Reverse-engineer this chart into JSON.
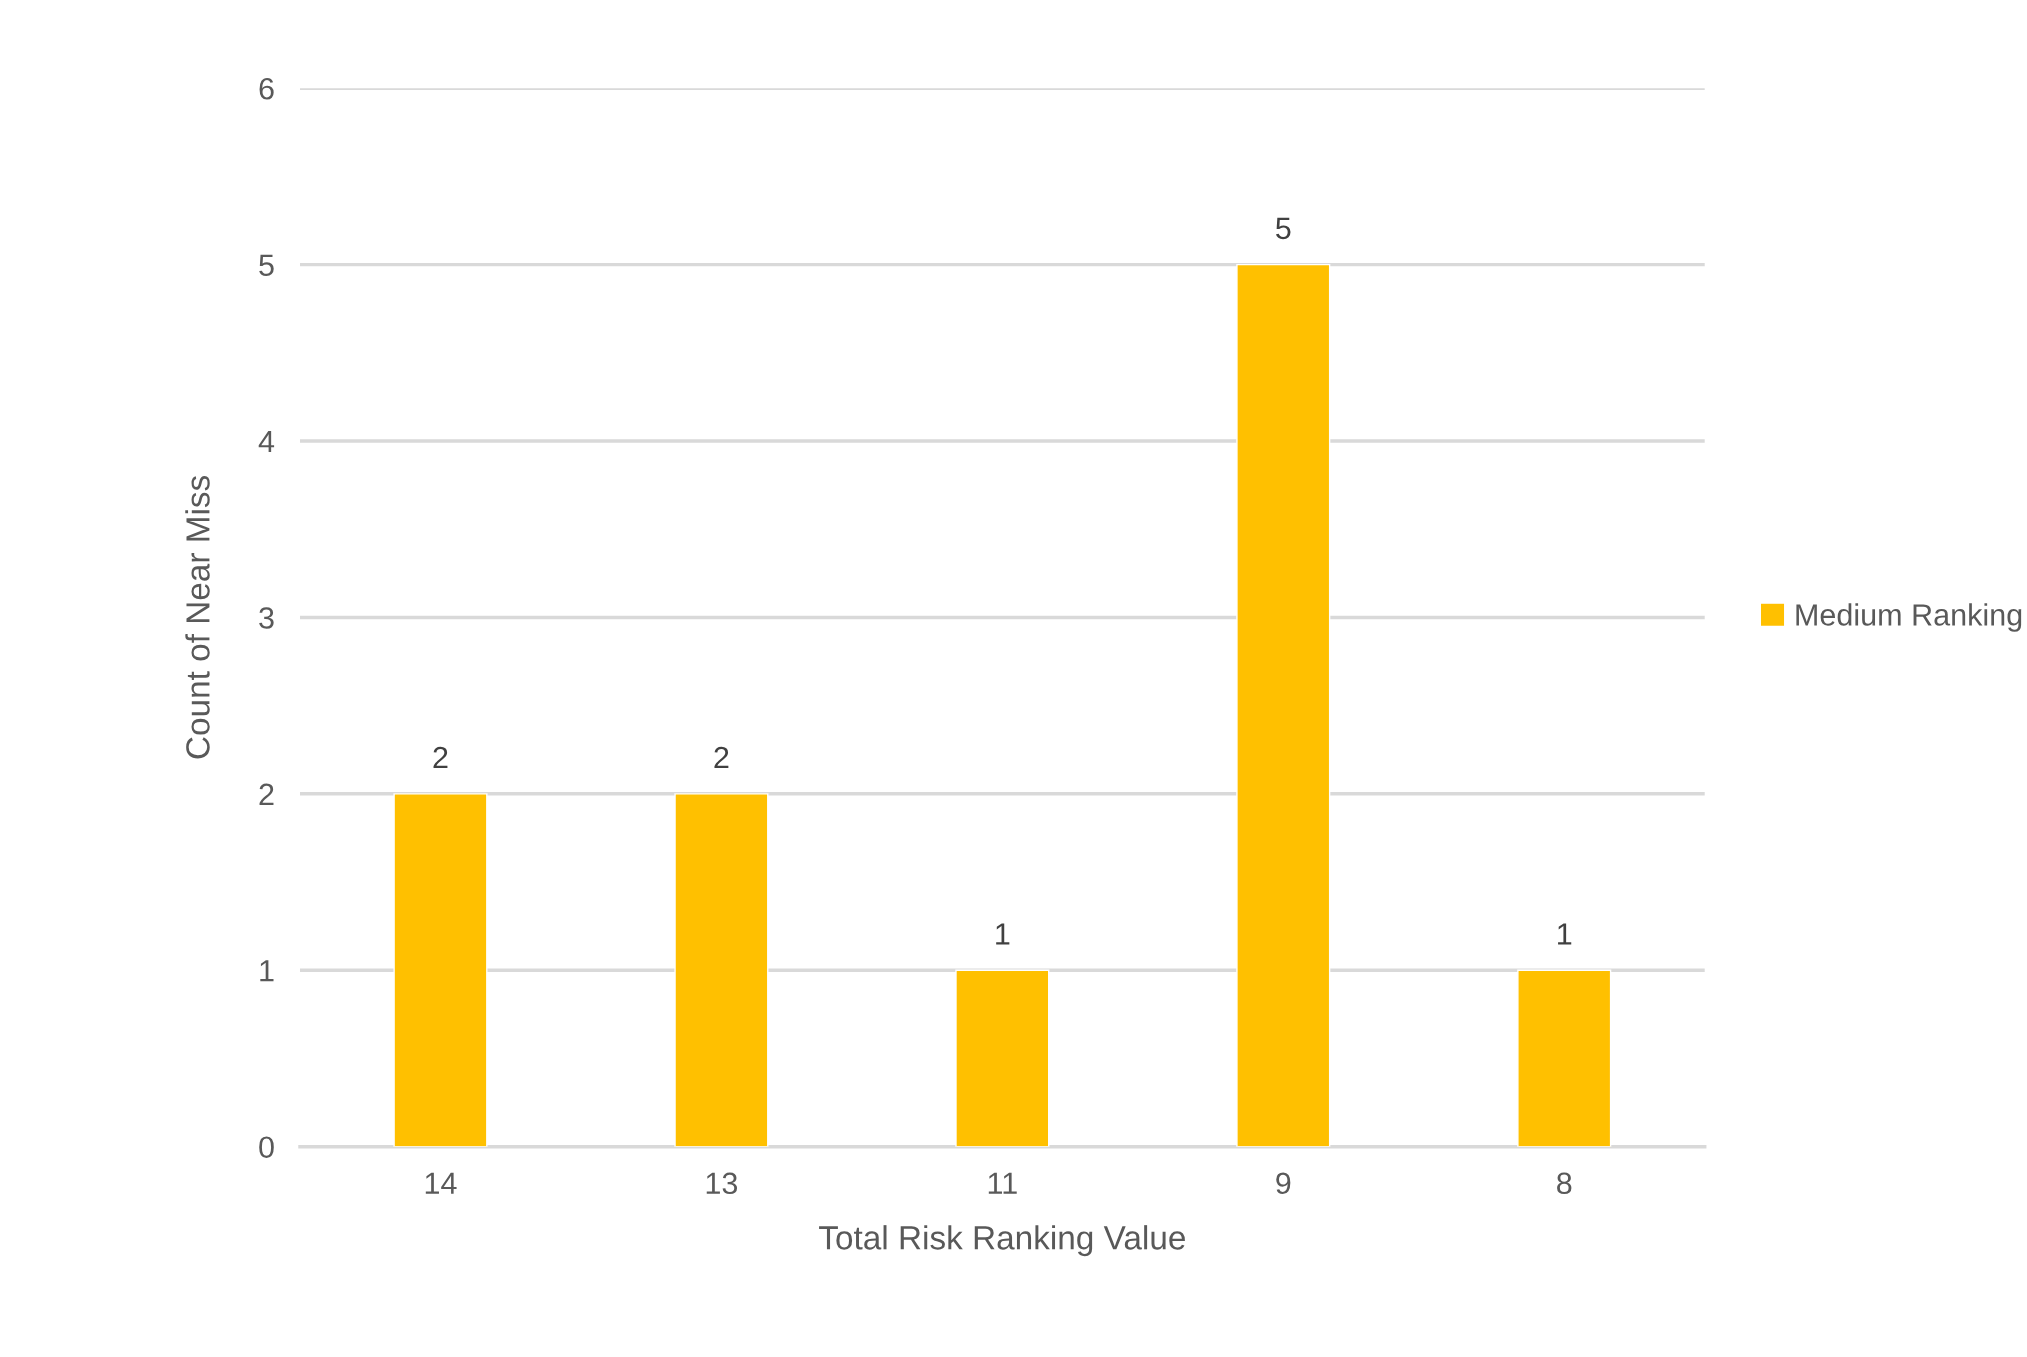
{
  "chart_data": {
    "type": "bar",
    "xlabel": "Total Risk Ranking Value",
    "ylabel": "Count of Near Miss",
    "categories": [
      "14",
      "13",
      "11",
      "9",
      "8"
    ],
    "series": [
      {
        "name": "Medium Ranking",
        "color": "#ffc000",
        "values": [
          2,
          2,
          1,
          5,
          1
        ]
      }
    ],
    "ylim": [
      0,
      6
    ],
    "yticks": [
      0,
      1,
      2,
      3,
      4,
      5,
      6
    ],
    "grid": "y",
    "legend": "right",
    "data_labels": true
  }
}
